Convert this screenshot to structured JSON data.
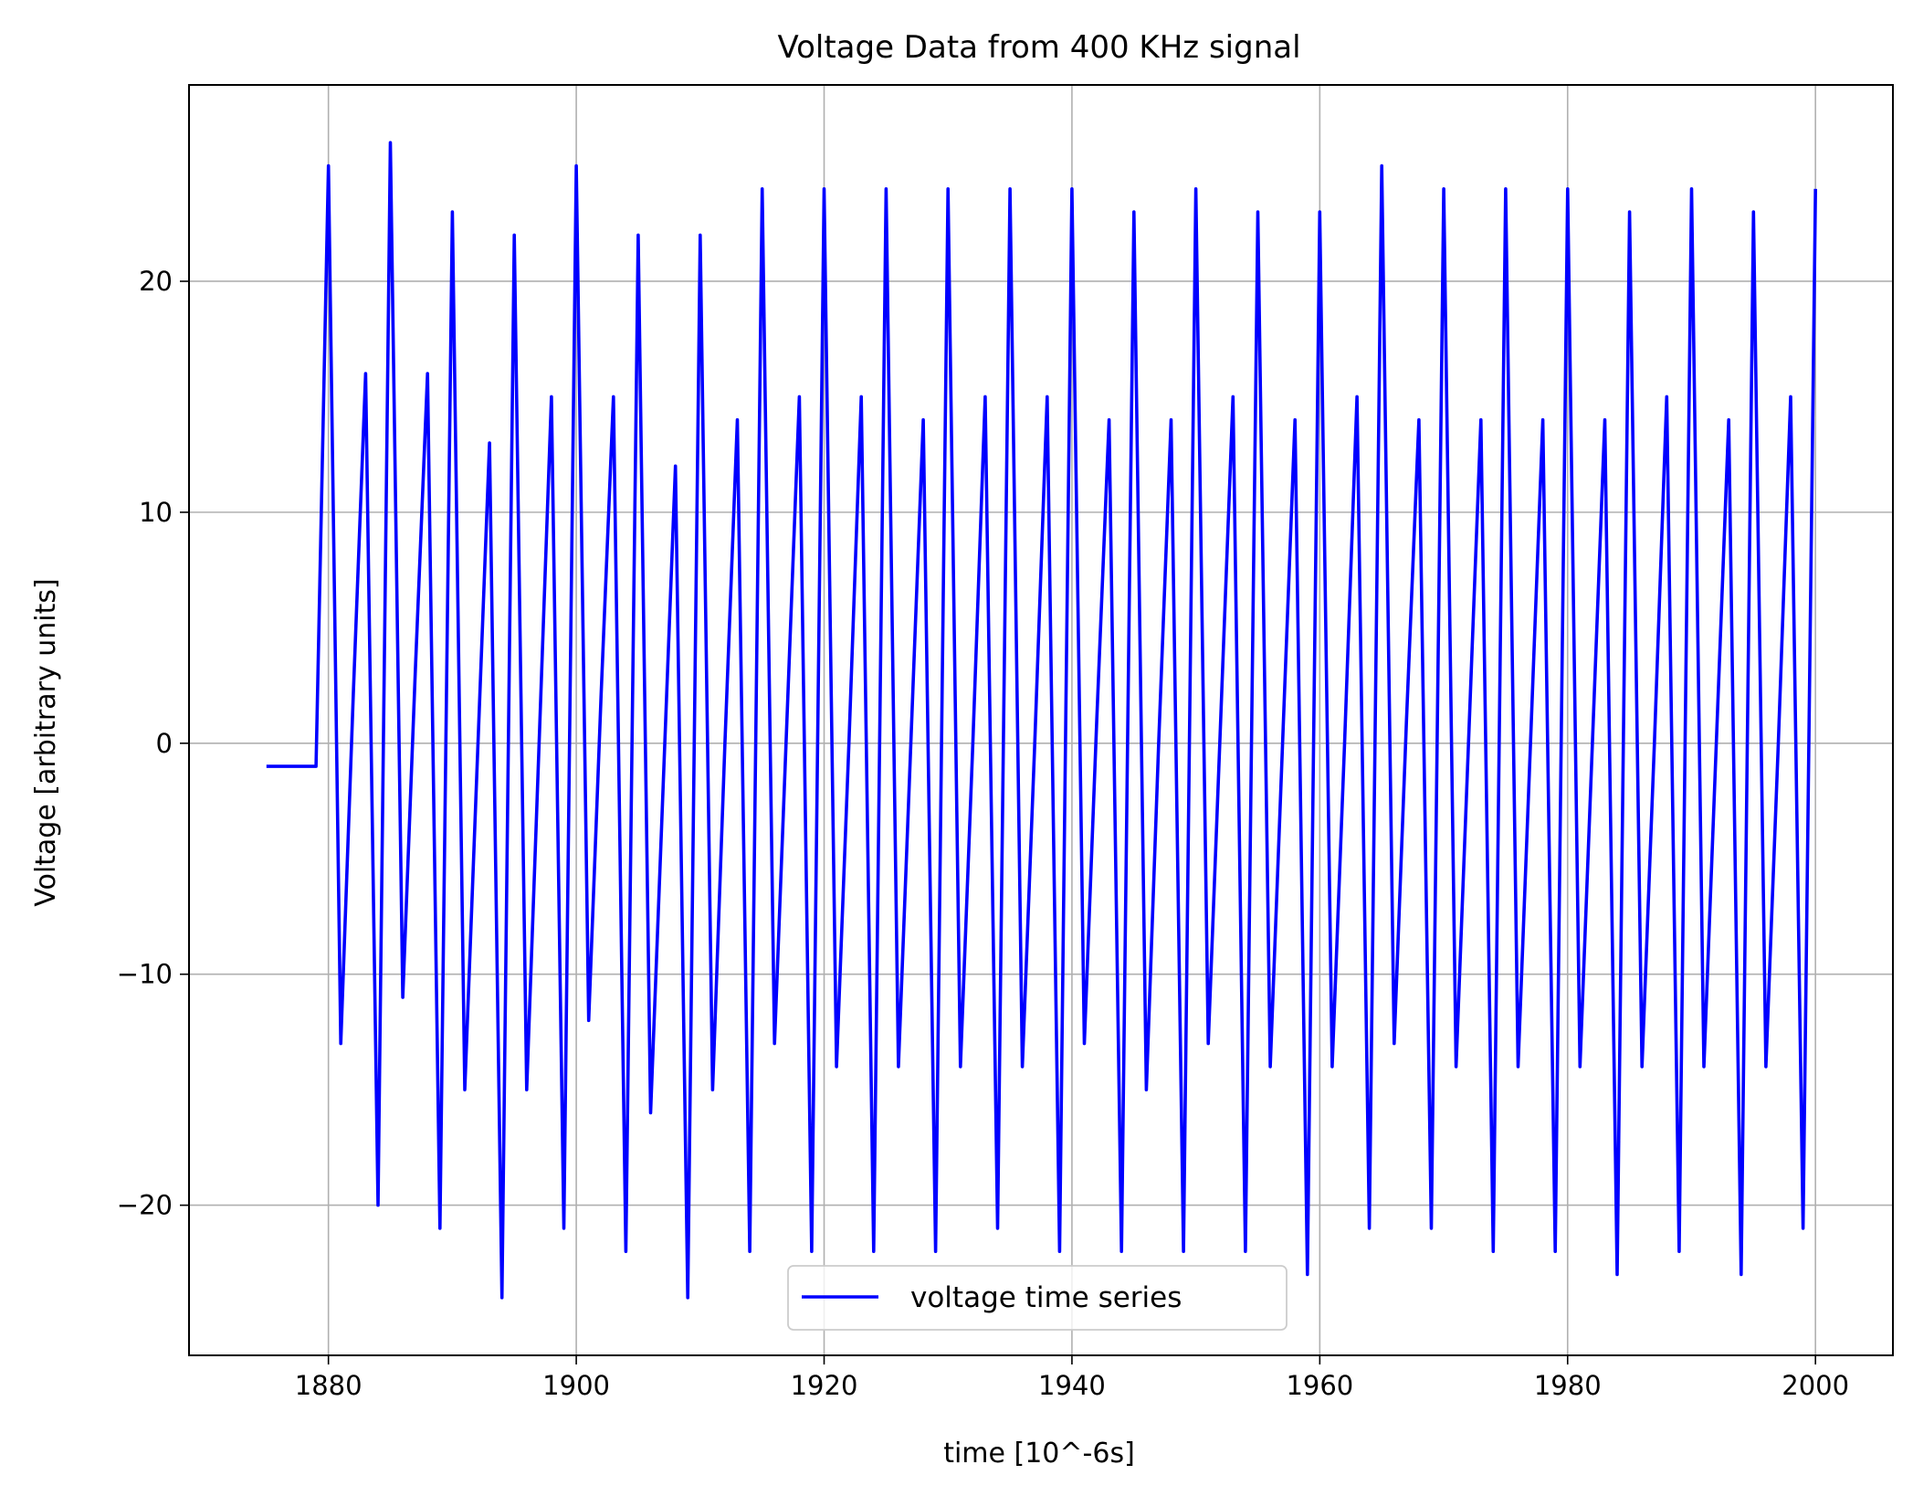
{
  "chart_data": {
    "type": "line",
    "title": "Voltage Data from 400 KHz signal",
    "xlabel": "time [10^-6s]",
    "ylabel": "Voltage [arbitrary units]",
    "xlim": [
      1868.75,
      2006.25
    ],
    "ylim": [
      -26.5,
      28.5
    ],
    "xticks": [
      1880,
      1900,
      1920,
      1940,
      1960,
      1980,
      2000
    ],
    "xtick_labels": [
      "1880",
      "1900",
      "1920",
      "1940",
      "1960",
      "1980",
      "2000"
    ],
    "yticks": [
      -20,
      -10,
      0,
      10,
      20
    ],
    "ytick_labels": [
      "−20",
      "−10",
      "0",
      "10",
      "20"
    ],
    "grid": true,
    "legend_position": "lower center",
    "series": [
      {
        "name": "voltage time series",
        "color": "#0000ff",
        "x": [
          1875,
          1876,
          1877,
          1878,
          1879,
          1880,
          1881,
          1882,
          1883,
          1884,
          1885,
          1886,
          1887,
          1888,
          1889,
          1890,
          1891,
          1892,
          1893,
          1894,
          1895,
          1896,
          1897,
          1898,
          1899,
          1900,
          1901,
          1902,
          1903,
          1904,
          1905,
          1906,
          1907,
          1908,
          1909,
          1910,
          1911,
          1912,
          1913,
          1914,
          1915,
          1916,
          1917,
          1918,
          1919,
          1920,
          1921,
          1922,
          1923,
          1924,
          1925,
          1926,
          1927,
          1928,
          1929,
          1930,
          1931,
          1932,
          1933,
          1934,
          1935,
          1936,
          1937,
          1938,
          1939,
          1940,
          1941,
          1942,
          1943,
          1944,
          1945,
          1946,
          1947,
          1948,
          1949,
          1950,
          1951,
          1952,
          1953,
          1954,
          1955,
          1956,
          1957,
          1958,
          1959,
          1960,
          1961,
          1962,
          1963,
          1964,
          1965,
          1966,
          1967,
          1968,
          1969,
          1970,
          1971,
          1972,
          1973,
          1974,
          1975,
          1976,
          1977,
          1978,
          1979,
          1980,
          1981,
          1982,
          1983,
          1984,
          1985,
          1986,
          1987,
          1988,
          1989,
          1990,
          1991,
          1992,
          1993,
          1994,
          1995,
          1996,
          1997,
          1998,
          1999,
          2000
        ],
        "y": [
          -1,
          -1,
          -1,
          -1,
          -1,
          25,
          -13,
          2,
          16,
          -20,
          26,
          -11,
          3,
          16,
          -21,
          23,
          -15,
          -1,
          13,
          -24,
          22,
          -15,
          0,
          15,
          -21,
          25,
          -12,
          2,
          15,
          -22,
          22,
          -16,
          -2,
          12,
          -24,
          22,
          -15,
          0,
          14,
          -22,
          24,
          -13,
          1,
          15,
          -22,
          24,
          -14,
          0,
          15,
          -22,
          24,
          -14,
          0,
          14,
          -22,
          24,
          -14,
          0,
          15,
          -21,
          24,
          -14,
          0,
          15,
          -22,
          24,
          -13,
          1,
          14,
          -22,
          23,
          -15,
          0,
          14,
          -22,
          24,
          -13,
          1,
          15,
          -22,
          23,
          -14,
          0,
          14,
          -23,
          23,
          -14,
          0,
          15,
          -21,
          25,
          -13,
          1,
          14,
          -21,
          24,
          -14,
          0,
          14,
          -22,
          24,
          -14,
          0,
          14,
          -22,
          24,
          -14,
          0,
          14,
          -23,
          23,
          -14,
          0,
          15,
          -22,
          24,
          -14,
          0,
          14,
          -23,
          23,
          -14,
          0,
          15,
          -21,
          24
        ]
      }
    ]
  }
}
